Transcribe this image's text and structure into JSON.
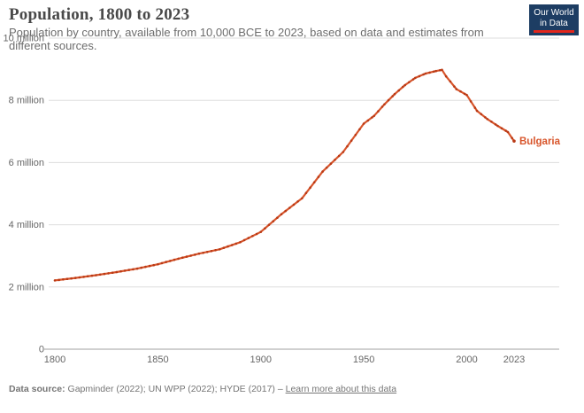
{
  "header": {
    "title": "Population, 1800 to 2023",
    "subtitle_line1": "Population by country, available from 10,000 BCE to 2023, based on data and estimates from",
    "subtitle_line2": "different sources."
  },
  "logo": {
    "line1": "Our World",
    "line2": "in Data"
  },
  "footer": {
    "source_label": "Data source:",
    "source_text": " Gapminder (2022); UN WPP (2022); HYDE (2017) – ",
    "link_label": "Learn more about this data"
  },
  "colors": {
    "line": "#d8552b",
    "marker": "#b93a16",
    "grid": "#dddddd",
    "zero_axis": "#a0a0a0",
    "tick_text": "#666666",
    "title_text": "#494949",
    "subtitle_text": "#6d6d6d",
    "footer_text": "#757575",
    "logo_bg": "#1d3d63",
    "logo_accent": "#e2261c"
  },
  "chart_data": {
    "type": "line",
    "title": "Population, 1800 to 2023",
    "xlabel": "",
    "ylabel": "",
    "y_unit": "people",
    "grid": true,
    "legend_position": "line-end-label",
    "xlim": [
      1800,
      2023
    ],
    "ylim": [
      0,
      10000000
    ],
    "x_ticks": [
      1800,
      1850,
      1900,
      1950,
      2000,
      2023
    ],
    "x_tick_labels": [
      "1800",
      "1850",
      "1900",
      "1950",
      "2000",
      "2023"
    ],
    "y_ticks": [
      {
        "value": 0,
        "label": "0"
      },
      {
        "value": 2000000,
        "label": "2 million"
      },
      {
        "value": 4000000,
        "label": "4 million"
      },
      {
        "value": 6000000,
        "label": "6 million"
      },
      {
        "value": 8000000,
        "label": "8 million"
      },
      {
        "value": 10000000,
        "label": "10 million"
      }
    ],
    "series": [
      {
        "name": "Bulgaria",
        "points": [
          [
            1800,
            2210000
          ],
          [
            1810,
            2290000
          ],
          [
            1820,
            2380000
          ],
          [
            1830,
            2480000
          ],
          [
            1840,
            2590000
          ],
          [
            1850,
            2730000
          ],
          [
            1860,
            2910000
          ],
          [
            1870,
            3070000
          ],
          [
            1880,
            3210000
          ],
          [
            1890,
            3440000
          ],
          [
            1900,
            3770000
          ],
          [
            1910,
            4340000
          ],
          [
            1920,
            4850000
          ],
          [
            1930,
            5710000
          ],
          [
            1940,
            6340000
          ],
          [
            1950,
            7250000
          ],
          [
            1955,
            7500000
          ],
          [
            1960,
            7870000
          ],
          [
            1965,
            8200000
          ],
          [
            1970,
            8490000
          ],
          [
            1975,
            8720000
          ],
          [
            1980,
            8860000
          ],
          [
            1985,
            8940000
          ],
          [
            1988,
            8980000
          ],
          [
            1990,
            8770000
          ],
          [
            1995,
            8360000
          ],
          [
            2000,
            8170000
          ],
          [
            2005,
            7660000
          ],
          [
            2010,
            7400000
          ],
          [
            2015,
            7180000
          ],
          [
            2020,
            6980000
          ],
          [
            2023,
            6690000
          ]
        ]
      }
    ]
  }
}
